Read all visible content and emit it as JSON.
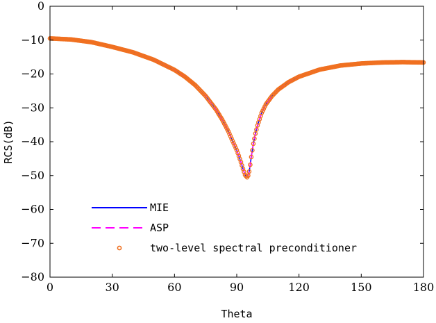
{
  "chart_data": {
    "type": "line",
    "title": "",
    "xlabel": "Theta",
    "ylabel": "RCS(dB)",
    "xlim": [
      0,
      180
    ],
    "ylim": [
      -80,
      0
    ],
    "xticks": [
      0,
      30,
      60,
      90,
      120,
      150,
      180
    ],
    "yticks": [
      0,
      -10,
      -20,
      -30,
      -40,
      -50,
      -60,
      -70,
      -80
    ],
    "x_tick_labels": [
      "0",
      "30",
      "60",
      "90",
      "120",
      "150",
      "180"
    ],
    "y_tick_labels": [
      "0",
      "−10",
      "−20",
      "−30",
      "−40",
      "−50",
      "−60",
      "−70",
      "−80"
    ],
    "grid": false,
    "legend_position": "bottom-left",
    "x": [
      0,
      10,
      20,
      30,
      40,
      50,
      60,
      65,
      70,
      75,
      80,
      83,
      86,
      88,
      90,
      91,
      92,
      93,
      94,
      95,
      95.5,
      96,
      96.5,
      97,
      98,
      99,
      100,
      102,
      104,
      107,
      110,
      115,
      120,
      130,
      140,
      150,
      160,
      170,
      180
    ],
    "series": [
      {
        "name": "MIE",
        "color": "#0000ff",
        "style": "solid",
        "values": [
          -9.5,
          -9.8,
          -10.6,
          -12.0,
          -13.6,
          -15.8,
          -18.8,
          -20.8,
          -23.3,
          -26.5,
          -30.5,
          -33.5,
          -37.0,
          -39.8,
          -42.5,
          -44.2,
          -46.0,
          -48.0,
          -49.8,
          -50.5,
          -50.0,
          -48.8,
          -46.8,
          -44.5,
          -40.6,
          -37.6,
          -35.2,
          -31.5,
          -29.0,
          -26.5,
          -24.6,
          -22.4,
          -20.8,
          -18.7,
          -17.5,
          -16.9,
          -16.6,
          -16.5,
          -16.6
        ]
      },
      {
        "name": "ASP",
        "color": "#ff00ff",
        "style": "dashed",
        "values": [
          -9.5,
          -9.8,
          -10.6,
          -12.0,
          -13.6,
          -15.8,
          -18.8,
          -20.8,
          -23.3,
          -26.5,
          -30.5,
          -33.5,
          -37.0,
          -39.8,
          -42.5,
          -44.2,
          -46.0,
          -48.0,
          -49.8,
          -50.5,
          -50.0,
          -48.8,
          -46.8,
          -44.5,
          -40.6,
          -37.6,
          -35.2,
          -31.5,
          -29.0,
          -26.5,
          -24.6,
          -22.4,
          -20.8,
          -18.7,
          -17.5,
          -16.9,
          -16.6,
          -16.5,
          -16.6
        ]
      },
      {
        "name": "two-level spectral preconditioner",
        "color": "#f07020",
        "style": "markers",
        "values": [
          -9.5,
          -9.8,
          -10.6,
          -12.0,
          -13.6,
          -15.8,
          -18.8,
          -20.8,
          -23.3,
          -26.5,
          -30.5,
          -33.5,
          -37.0,
          -39.8,
          -42.5,
          -44.2,
          -46.0,
          -48.0,
          -49.8,
          -50.5,
          -50.0,
          -48.8,
          -46.8,
          -44.5,
          -40.6,
          -37.6,
          -35.2,
          -31.5,
          -29.0,
          -26.5,
          -24.6,
          -22.4,
          -20.8,
          -18.7,
          -17.5,
          -16.9,
          -16.6,
          -16.5,
          -16.6
        ]
      }
    ]
  }
}
